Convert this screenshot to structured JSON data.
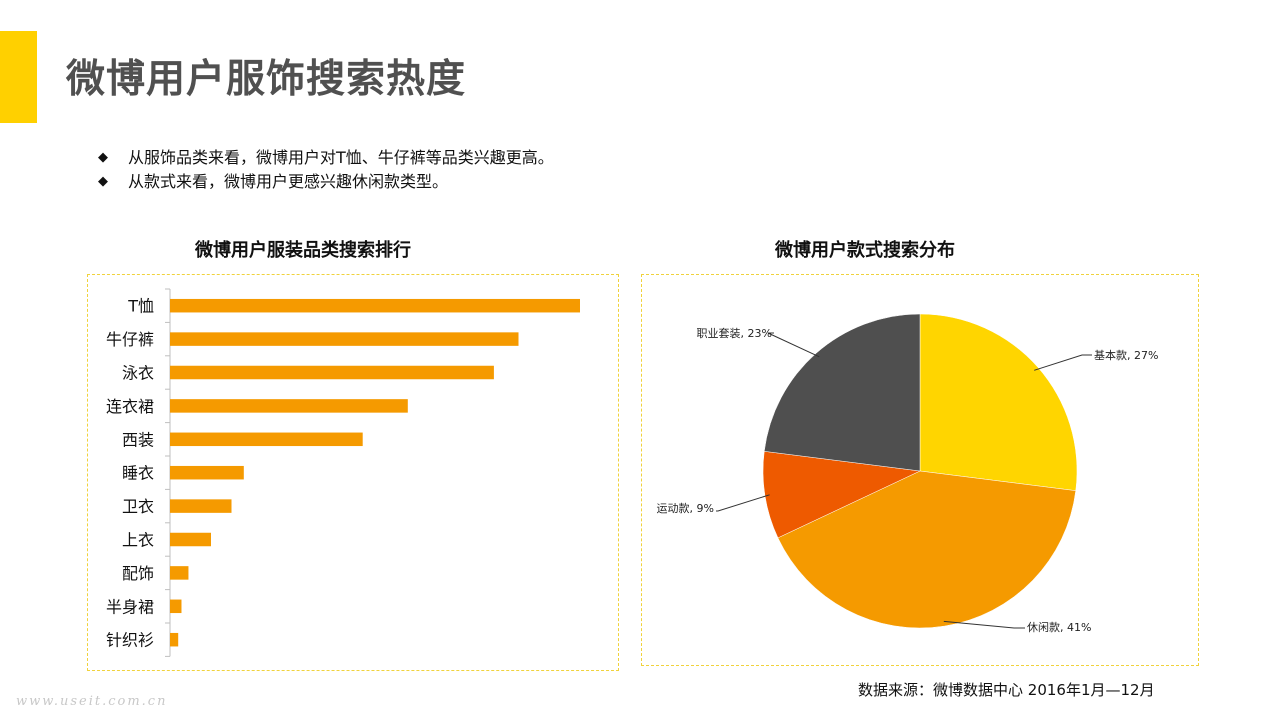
{
  "page": {
    "title": "微博用户服饰搜索热度",
    "bullets": [
      "从服饰品类来看，微博用户对T恤、牛仔裤等品类兴趣更高。",
      "从款式来看，微博用户更感兴趣休闲款类型。"
    ],
    "source": "数据来源：微博数据中心 2016年1月—12月",
    "watermark": "www.useit.com.cn",
    "bullet_icon": "diamond-icon",
    "accent_color": "#ffd000"
  },
  "chart_data": [
    {
      "type": "bar",
      "orientation": "horizontal",
      "title": "微博用户服装品类搜索排行",
      "categories": [
        "T恤",
        "牛仔裤",
        "泳衣",
        "连衣裙",
        "西装",
        "睡衣",
        "卫衣",
        "上衣",
        "配饰",
        "半身裙",
        "针织衫"
      ],
      "values": [
        100,
        85,
        79,
        58,
        47,
        18,
        15,
        10,
        4.5,
        2.8,
        2
      ],
      "bar_color": "#f59a00",
      "xlabel": "",
      "ylabel": "",
      "xlim": [
        0,
        100
      ],
      "grid": false,
      "legend": "none"
    },
    {
      "type": "pie",
      "title": "微博用户款式搜索分布",
      "slices": [
        {
          "label": "基本款, 27%",
          "value": 27,
          "color": "#ffd500"
        },
        {
          "label": "休闲款, 41%",
          "value": 41,
          "color": "#f59a00"
        },
        {
          "label": "运动款, 9%",
          "value": 9,
          "color": "#ee5a00"
        },
        {
          "label": "职业套装, 23%",
          "value": 23,
          "color": "#4f4f4f"
        }
      ],
      "start_angle_deg": 0,
      "direction": "clockwise",
      "legend": "none"
    }
  ]
}
